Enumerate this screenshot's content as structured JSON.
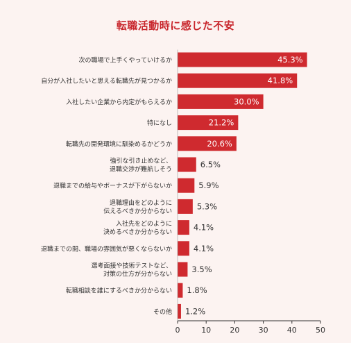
{
  "chart_data": {
    "type": "bar",
    "orientation": "horizontal",
    "title": "転職活動時に感じた不安",
    "categories": [
      "次の職場で上手くやっていけるか",
      "自分が入社したいと思える転職先が見つかるか",
      "入社したい企業から内定がもらえるか",
      "特になし",
      "転職先の開発環境に馴染めるかどうか",
      "強引な引き止めなど、\n退職交渉が難航しそう",
      "退職までの給与やボーナスが下がらないか",
      "退職理由をどのように\n伝えるべきか分からない",
      "入社先をどのように\n決めるべきか分からない",
      "退職までの間、職場の雰囲気が悪くならないか",
      "選考面接や技術テストなど、\n対策の仕方が分からない",
      "転職相談を誰にするべきか分からない",
      "その他"
    ],
    "values": [
      45.3,
      41.8,
      30.0,
      21.2,
      20.6,
      6.5,
      5.9,
      5.3,
      4.1,
      4.1,
      3.5,
      1.8,
      1.2
    ],
    "value_labels": [
      "45.3%",
      "41.8%",
      "30.0%",
      "21.2%",
      "20.6%",
      "6.5%",
      "5.9%",
      "5.3%",
      "4.1%",
      "4.1%",
      "3.5%",
      "1.8%",
      "1.2%"
    ],
    "xlim": [
      0,
      50
    ],
    "xticks": [
      0,
      10,
      20,
      30,
      40,
      50
    ],
    "xlabel": "",
    "ylabel": "",
    "grid": false,
    "bar_color": "#cf2a2f",
    "background_color": "#fcf3f1",
    "title_color": "#c8262c"
  }
}
